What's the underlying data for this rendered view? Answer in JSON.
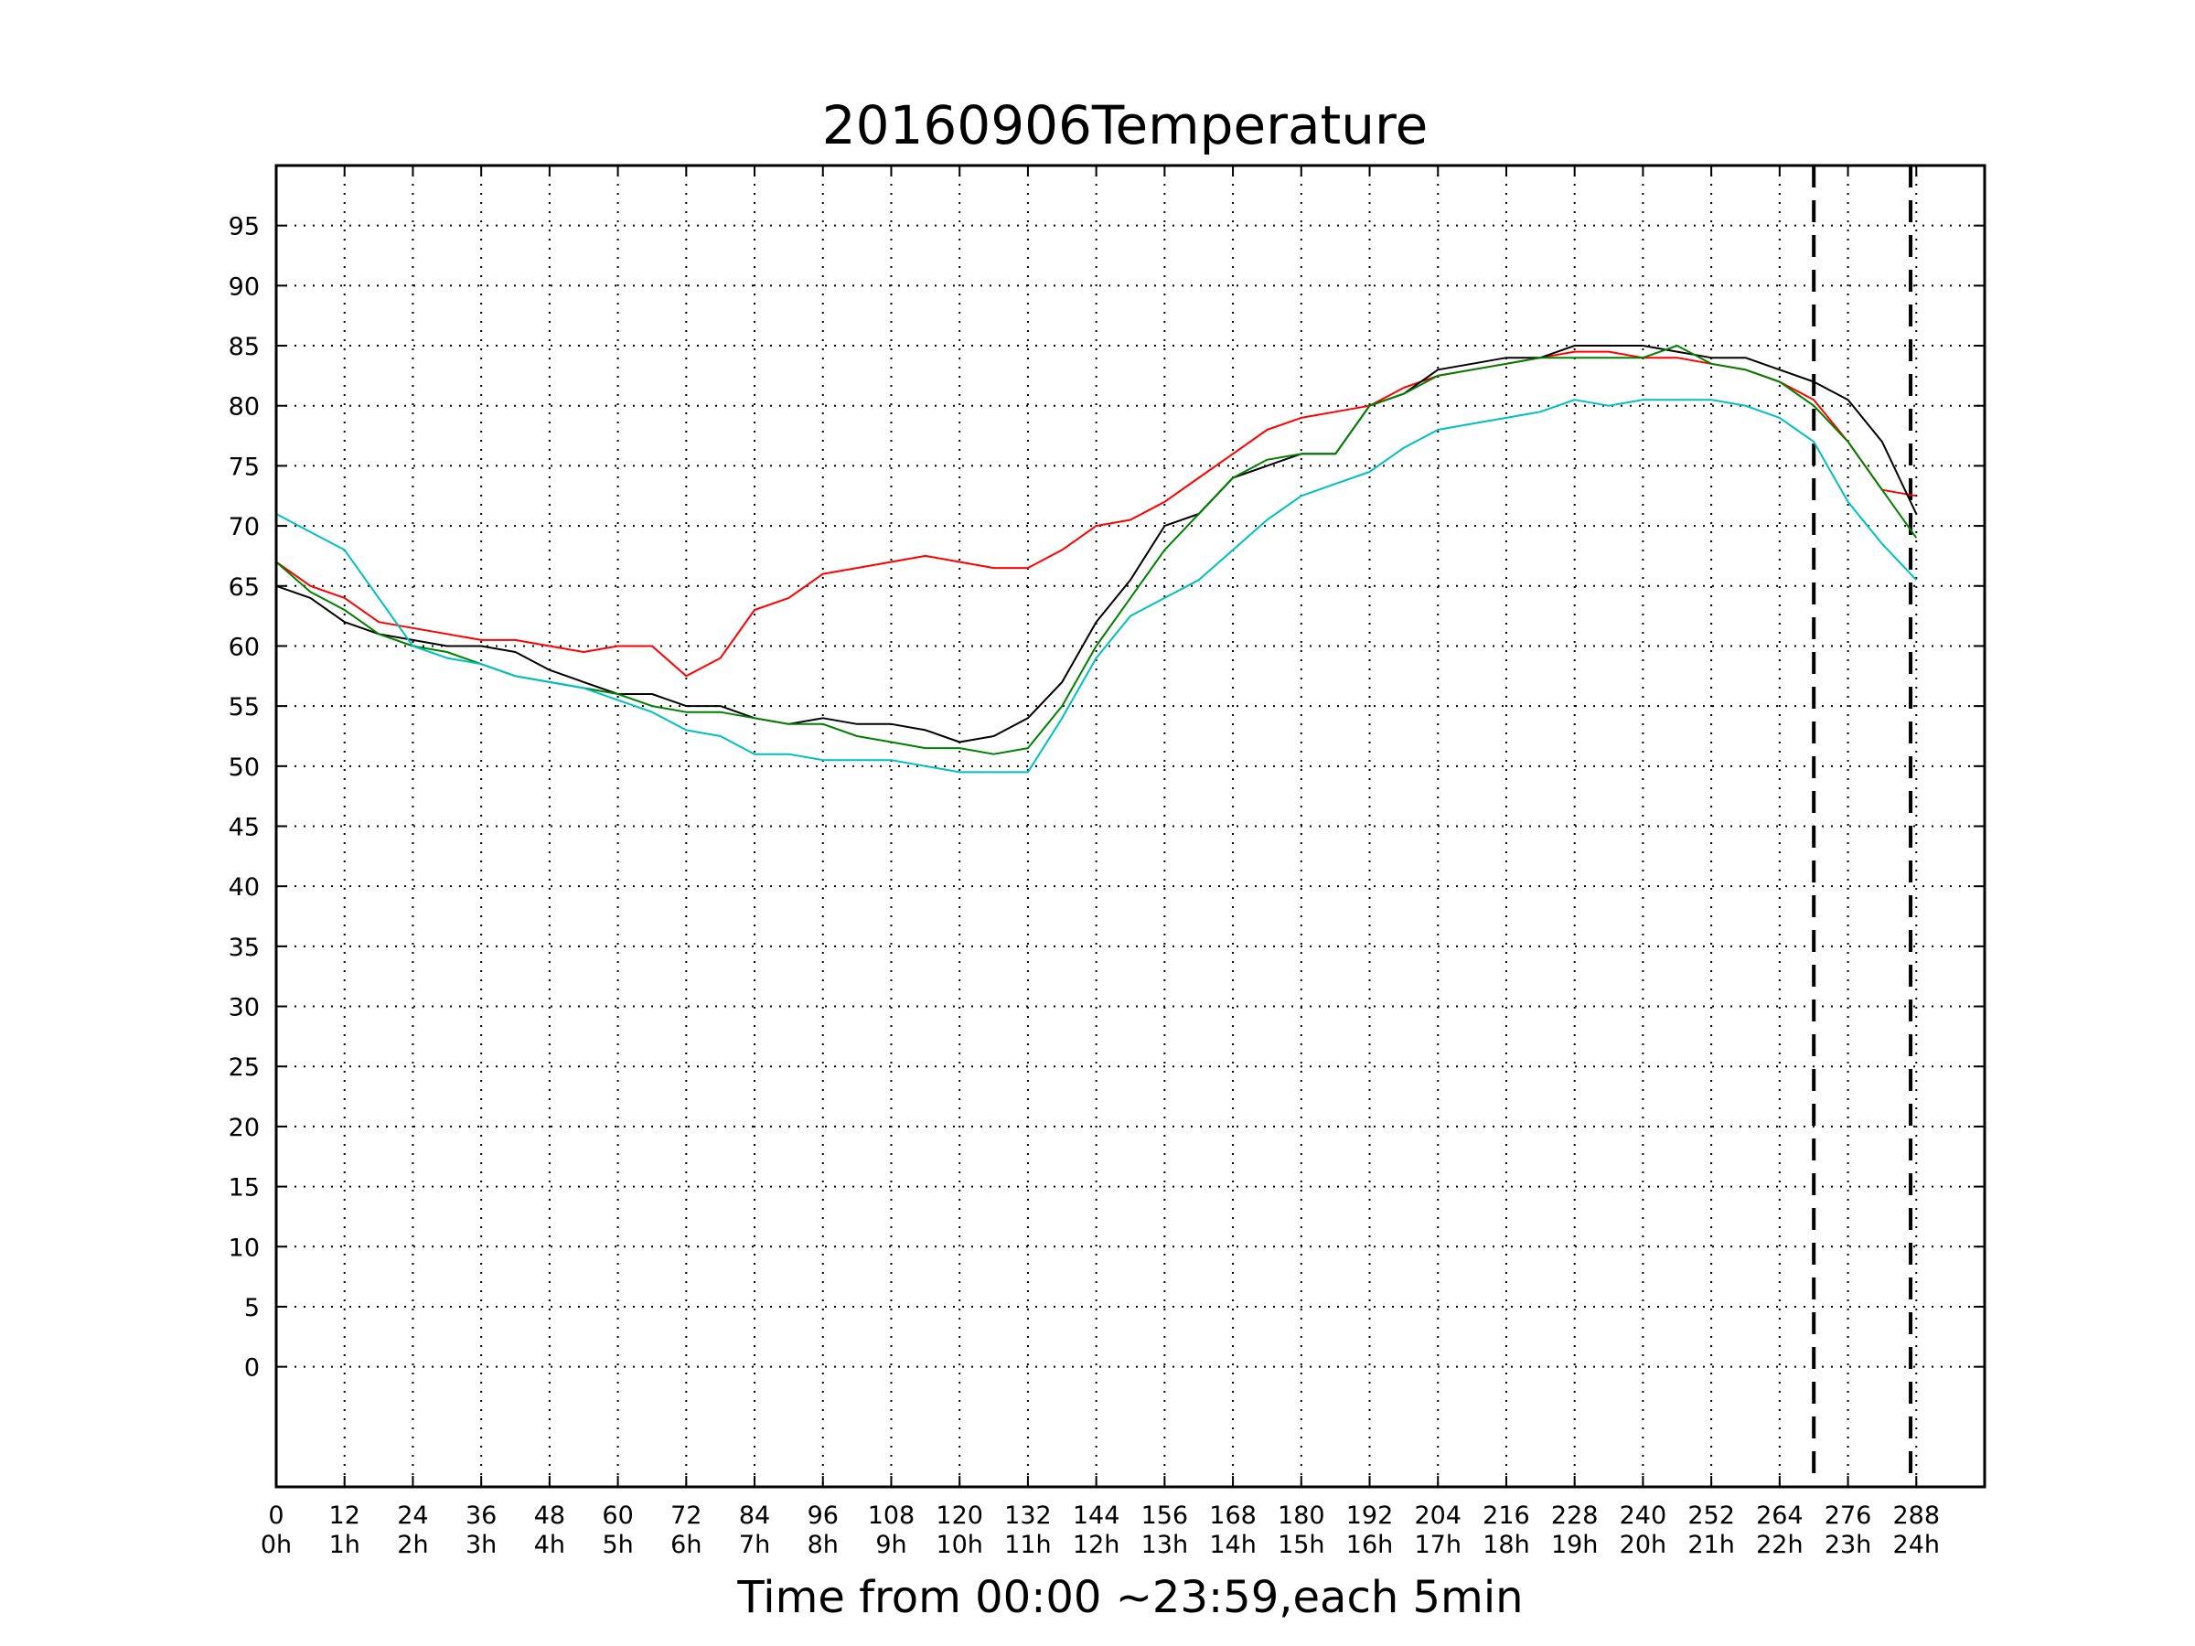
{
  "chart_data": {
    "type": "line",
    "title": "20160906Temperature",
    "xlabel": "Time from 00:00 ~23:59,each 5min",
    "ylabel": "",
    "xlim": [
      0,
      300
    ],
    "ylim": [
      -10,
      100
    ],
    "grid": true,
    "x_ticks": [
      {
        "value": 0,
        "label": "0",
        "hour": "0h"
      },
      {
        "value": 12,
        "label": "12",
        "hour": "1h"
      },
      {
        "value": 24,
        "label": "24",
        "hour": "2h"
      },
      {
        "value": 36,
        "label": "36",
        "hour": "3h"
      },
      {
        "value": 48,
        "label": "48",
        "hour": "4h"
      },
      {
        "value": 60,
        "label": "60",
        "hour": "5h"
      },
      {
        "value": 72,
        "label": "72",
        "hour": "6h"
      },
      {
        "value": 84,
        "label": "84",
        "hour": "7h"
      },
      {
        "value": 96,
        "label": "96",
        "hour": "8h"
      },
      {
        "value": 108,
        "label": "108",
        "hour": "9h"
      },
      {
        "value": 120,
        "label": "120",
        "hour": "10h"
      },
      {
        "value": 132,
        "label": "132",
        "hour": "11h"
      },
      {
        "value": 144,
        "label": "144",
        "hour": "12h"
      },
      {
        "value": 156,
        "label": "156",
        "hour": "13h"
      },
      {
        "value": 168,
        "label": "168",
        "hour": "14h"
      },
      {
        "value": 180,
        "label": "180",
        "hour": "15h"
      },
      {
        "value": 192,
        "label": "192",
        "hour": "16h"
      },
      {
        "value": 204,
        "label": "204",
        "hour": "17h"
      },
      {
        "value": 216,
        "label": "216",
        "hour": "18h"
      },
      {
        "value": 228,
        "label": "228",
        "hour": "19h"
      },
      {
        "value": 240,
        "label": "240",
        "hour": "20h"
      },
      {
        "value": 252,
        "label": "252",
        "hour": "21h"
      },
      {
        "value": 264,
        "label": "264",
        "hour": "22h"
      },
      {
        "value": 276,
        "label": "276",
        "hour": "23h"
      },
      {
        "value": 288,
        "label": "288",
        "hour": "24h"
      }
    ],
    "y_ticks": [
      0,
      5,
      10,
      15,
      20,
      25,
      30,
      35,
      40,
      45,
      50,
      55,
      60,
      65,
      70,
      75,
      80,
      85,
      90,
      95
    ],
    "vertical_lines": [
      270,
      287
    ],
    "series": [
      {
        "color": "#ff0000",
        "x": [
          0,
          6,
          12,
          18,
          24,
          30,
          36,
          42,
          48,
          54,
          60,
          66,
          72,
          78,
          84,
          90,
          96,
          102,
          108,
          114,
          120,
          126,
          132,
          138,
          144,
          150,
          156,
          162,
          168,
          174,
          180,
          186,
          192,
          198,
          204,
          210,
          216,
          222,
          228,
          234,
          240,
          246,
          252,
          258,
          264,
          270,
          276,
          282,
          288
        ],
        "y": [
          67,
          65,
          64,
          62,
          61.5,
          61,
          60.5,
          60.5,
          60,
          59.5,
          60,
          60,
          57.5,
          59,
          63,
          64,
          66,
          66.5,
          67,
          67.5,
          67,
          66.5,
          66.5,
          68,
          70,
          70.5,
          72,
          74,
          76,
          78,
          79,
          79.5,
          80,
          81.5,
          82.5,
          83,
          83.5,
          84,
          84.5,
          84.5,
          84,
          84,
          83.5,
          83,
          82,
          80.5,
          77,
          73,
          72.5
        ]
      },
      {
        "color": "#000000",
        "x": [
          0,
          6,
          12,
          18,
          24,
          30,
          36,
          42,
          48,
          54,
          60,
          66,
          72,
          78,
          84,
          90,
          96,
          102,
          108,
          114,
          120,
          126,
          132,
          138,
          144,
          150,
          156,
          162,
          168,
          174,
          180,
          186,
          192,
          198,
          204,
          210,
          216,
          222,
          228,
          234,
          240,
          246,
          252,
          258,
          264,
          270,
          276,
          282,
          288
        ],
        "y": [
          65,
          64,
          62,
          61,
          60.5,
          60,
          60,
          59.5,
          58,
          57,
          56,
          56,
          55,
          55,
          54,
          53.5,
          54,
          53.5,
          53.5,
          53,
          52,
          52.5,
          54,
          57,
          62,
          65.5,
          70,
          71,
          74,
          75,
          76,
          76,
          80,
          81,
          83,
          83.5,
          84,
          84,
          85,
          85,
          85,
          84.5,
          84,
          84,
          83,
          82,
          80.5,
          77,
          71
        ]
      },
      {
        "color": "#008000",
        "x": [
          0,
          6,
          12,
          18,
          24,
          30,
          36,
          42,
          48,
          54,
          60,
          66,
          72,
          78,
          84,
          90,
          96,
          102,
          108,
          114,
          120,
          126,
          132,
          138,
          144,
          150,
          156,
          162,
          168,
          174,
          180,
          186,
          192,
          198,
          204,
          210,
          216,
          222,
          228,
          234,
          240,
          246,
          252,
          258,
          264,
          270,
          276,
          282,
          288
        ],
        "y": [
          67,
          64.5,
          63,
          61,
          60,
          59.5,
          58.5,
          57.5,
          57,
          56.5,
          56,
          55,
          54.5,
          54.5,
          54,
          53.5,
          53.5,
          52.5,
          52,
          51.5,
          51.5,
          51,
          51.5,
          55,
          60,
          64,
          68,
          71,
          74,
          75.5,
          76,
          76,
          80,
          81,
          82.5,
          83,
          83.5,
          84,
          84,
          84,
          84,
          85,
          83.5,
          83,
          82,
          80,
          77,
          73,
          69
        ]
      },
      {
        "color": "#00bfbf",
        "x": [
          0,
          6,
          12,
          18,
          24,
          30,
          36,
          42,
          48,
          54,
          60,
          66,
          72,
          78,
          84,
          90,
          96,
          102,
          108,
          114,
          120,
          126,
          132,
          138,
          144,
          150,
          156,
          162,
          168,
          174,
          180,
          186,
          192,
          198,
          204,
          210,
          216,
          222,
          228,
          234,
          240,
          246,
          252,
          258,
          264,
          270,
          276,
          282,
          288
        ],
        "y": [
          71,
          69.5,
          68,
          64,
          60,
          59,
          58.5,
          57.5,
          57,
          56.5,
          55.5,
          54.5,
          53,
          52.5,
          51,
          51,
          50.5,
          50.5,
          50.5,
          50,
          49.5,
          49.5,
          49.5,
          54,
          59,
          62.5,
          64,
          65.5,
          68,
          70.5,
          72.5,
          73.5,
          74.5,
          76.5,
          78,
          78.5,
          79,
          79.5,
          80.5,
          80,
          80.5,
          80.5,
          80.5,
          80,
          79,
          77,
          72,
          68.5,
          65.5
        ]
      }
    ]
  }
}
